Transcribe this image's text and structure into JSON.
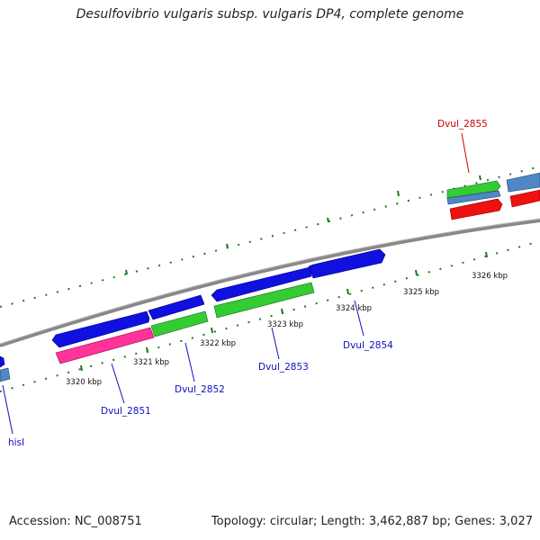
{
  "title": "Desulfovibrio vulgaris subsp. vulgaris DP4, complete genome",
  "footer": {
    "accession": "Accession: NC_008751",
    "stats": "Topology: circular; Length: 3,462,887 bp; Genes: 3,027"
  },
  "scale": {
    "ticks": [
      "3320 kbp",
      "3321 kbp",
      "3322 kbp",
      "3323 kbp",
      "3324 kbp",
      "3325 kbp",
      "3326 kbp"
    ]
  },
  "genes": {
    "dvul_2855": "Dvul_2855",
    "dvul_2851": "Dvul_2851",
    "dvul_2852": "Dvul_2852",
    "dvul_2853": "Dvul_2853",
    "dvul_2854": "Dvul_2854",
    "hisI": "hisI"
  },
  "colors": {
    "cds_forward": "#1010e0",
    "cds_green": "#33cc33",
    "cds_pink": "#ff3399",
    "cds_red": "#ee1111",
    "cds_steel": "#4f86c6",
    "backbone": "#888888",
    "tick_green": "#1a7a1a",
    "label_blue": "#1010c0",
    "label_red": "#d00000"
  }
}
